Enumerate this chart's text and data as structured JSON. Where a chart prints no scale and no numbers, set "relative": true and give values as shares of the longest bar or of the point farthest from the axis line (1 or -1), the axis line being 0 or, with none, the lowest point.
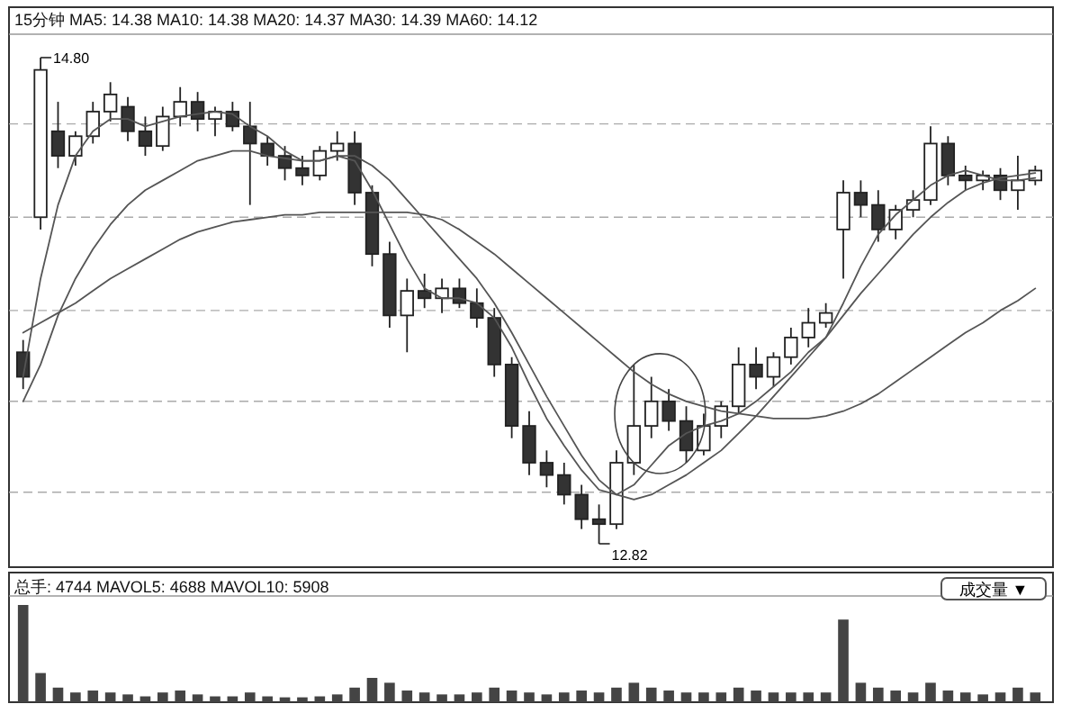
{
  "chart_data": [
    {
      "type": "candlestick",
      "title": "15分钟 MA5: 14.38 MA10: 14.38 MA20: 14.37 MA30: 14.39 MA60: 14.12",
      "categories": [
        null,
        null,
        null,
        null,
        null,
        null,
        null,
        null,
        null,
        null,
        null,
        null,
        null,
        null,
        null,
        null,
        null,
        null,
        null,
        null,
        null,
        null,
        null,
        null,
        null,
        null,
        null,
        null,
        null,
        null,
        null,
        null,
        null,
        null,
        null,
        null,
        null,
        null,
        null,
        null,
        null,
        null,
        null,
        null,
        null,
        null,
        null,
        null,
        null,
        null,
        null,
        null,
        null,
        null,
        null,
        null,
        null,
        null,
        null
      ],
      "ohlc": [
        [
          13.6,
          13.65,
          13.45,
          13.5
        ],
        [
          14.15,
          14.8,
          14.1,
          14.75
        ],
        [
          14.5,
          14.62,
          14.35,
          14.4
        ],
        [
          14.4,
          14.5,
          14.36,
          14.48
        ],
        [
          14.48,
          14.62,
          14.45,
          14.58
        ],
        [
          14.58,
          14.7,
          14.54,
          14.65
        ],
        [
          14.6,
          14.64,
          14.46,
          14.5
        ],
        [
          14.5,
          14.56,
          14.4,
          14.44
        ],
        [
          14.44,
          14.6,
          14.42,
          14.56
        ],
        [
          14.56,
          14.68,
          14.52,
          14.62
        ],
        [
          14.62,
          14.66,
          14.5,
          14.55
        ],
        [
          14.55,
          14.6,
          14.48,
          14.58
        ],
        [
          14.58,
          14.62,
          14.5,
          14.52
        ],
        [
          14.52,
          14.62,
          14.2,
          14.45
        ],
        [
          14.45,
          14.48,
          14.36,
          14.4
        ],
        [
          14.4,
          14.44,
          14.3,
          14.35
        ],
        [
          14.35,
          14.4,
          14.28,
          14.32
        ],
        [
          14.32,
          14.44,
          14.3,
          14.42
        ],
        [
          14.42,
          14.5,
          14.38,
          14.45
        ],
        [
          14.45,
          14.5,
          14.2,
          14.25
        ],
        [
          14.25,
          14.28,
          13.95,
          14.0
        ],
        [
          14.0,
          14.05,
          13.7,
          13.75
        ],
        [
          13.75,
          13.9,
          13.6,
          13.85
        ],
        [
          13.85,
          13.92,
          13.78,
          13.82
        ],
        [
          13.82,
          13.9,
          13.76,
          13.86
        ],
        [
          13.86,
          13.9,
          13.78,
          13.8
        ],
        [
          13.8,
          13.86,
          13.7,
          13.74
        ],
        [
          13.74,
          13.78,
          13.5,
          13.55
        ],
        [
          13.55,
          13.58,
          13.25,
          13.3
        ],
        [
          13.3,
          13.36,
          13.1,
          13.15
        ],
        [
          13.15,
          13.2,
          13.05,
          13.1
        ],
        [
          13.1,
          13.15,
          12.98,
          13.02
        ],
        [
          13.02,
          13.06,
          12.88,
          12.92
        ],
        [
          12.92,
          12.98,
          12.82,
          12.9
        ],
        [
          12.9,
          13.2,
          12.88,
          13.15
        ],
        [
          13.15,
          13.55,
          13.1,
          13.3
        ],
        [
          13.3,
          13.5,
          13.25,
          13.4
        ],
        [
          13.4,
          13.45,
          13.28,
          13.32
        ],
        [
          13.32,
          13.38,
          13.15,
          13.2
        ],
        [
          13.2,
          13.35,
          13.18,
          13.3
        ],
        [
          13.3,
          13.4,
          13.25,
          13.38
        ],
        [
          13.38,
          13.62,
          13.35,
          13.55
        ],
        [
          13.55,
          13.62,
          13.45,
          13.5
        ],
        [
          13.5,
          13.6,
          13.46,
          13.58
        ],
        [
          13.58,
          13.7,
          13.55,
          13.66
        ],
        [
          13.66,
          13.78,
          13.62,
          13.72
        ],
        [
          13.72,
          13.8,
          13.7,
          13.76
        ],
        [
          14.1,
          14.3,
          13.9,
          14.25
        ],
        [
          14.25,
          14.3,
          14.15,
          14.2
        ],
        [
          14.2,
          14.26,
          14.05,
          14.1
        ],
        [
          14.1,
          14.2,
          14.06,
          14.18
        ],
        [
          14.18,
          14.26,
          14.15,
          14.22
        ],
        [
          14.22,
          14.52,
          14.2,
          14.45
        ],
        [
          14.45,
          14.48,
          14.28,
          14.32
        ],
        [
          14.32,
          14.36,
          14.26,
          14.3
        ],
        [
          14.3,
          14.34,
          14.26,
          14.32
        ],
        [
          14.32,
          14.35,
          14.22,
          14.26
        ],
        [
          14.26,
          14.4,
          14.18,
          14.3
        ],
        [
          14.3,
          14.36,
          14.28,
          14.34
        ]
      ],
      "series": [
        {
          "type": "line",
          "color": "#555555",
          "values": [
            13.5,
            13.9,
            14.2,
            14.4,
            14.5,
            14.55,
            14.55,
            14.52,
            14.54,
            14.56,
            14.57,
            14.58,
            14.57,
            14.52,
            14.48,
            14.42,
            14.38,
            14.38,
            14.4,
            14.38,
            14.26,
            14.12,
            13.98,
            13.86,
            13.82,
            13.82,
            13.8,
            13.74,
            13.62,
            13.47,
            13.33,
            13.22,
            13.12,
            13.04,
            13.02,
            13.06,
            13.14,
            13.22,
            13.27,
            13.3,
            13.32,
            13.35,
            13.4,
            13.46,
            13.52,
            13.6,
            13.66,
            13.8,
            13.95,
            14.08,
            14.16,
            14.22,
            14.28,
            14.32,
            14.34,
            14.32,
            14.3,
            14.3,
            14.31
          ]
        },
        {
          "type": "line",
          "color": "#555555",
          "values": [
            13.4,
            13.55,
            13.75,
            13.9,
            14.02,
            14.12,
            14.2,
            14.26,
            14.3,
            14.34,
            14.38,
            14.4,
            14.42,
            14.42,
            14.4,
            14.39,
            14.38,
            14.38,
            14.4,
            14.4,
            14.36,
            14.3,
            14.22,
            14.14,
            14.06,
            13.98,
            13.9,
            13.8,
            13.68,
            13.55,
            13.42,
            13.3,
            13.18,
            13.08,
            13.02,
            13.0,
            13.02,
            13.06,
            13.1,
            13.15,
            13.2,
            13.27,
            13.34,
            13.42,
            13.5,
            13.58,
            13.66,
            13.75,
            13.84,
            13.92,
            14.0,
            14.08,
            14.15,
            14.21,
            14.26,
            14.29,
            14.31,
            14.32,
            14.33
          ]
        },
        {
          "type": "line",
          "color": "#555555",
          "values": [
            13.68,
            13.72,
            13.76,
            13.8,
            13.85,
            13.9,
            13.94,
            13.98,
            14.02,
            14.06,
            14.09,
            14.11,
            14.13,
            14.14,
            14.15,
            14.16,
            14.16,
            14.17,
            14.17,
            14.17,
            14.17,
            14.17,
            14.17,
            14.16,
            14.14,
            14.1,
            14.05,
            14.0,
            13.94,
            13.88,
            13.82,
            13.76,
            13.7,
            13.64,
            13.58,
            13.52,
            13.47,
            13.43,
            13.4,
            13.38,
            13.36,
            13.35,
            13.34,
            13.33,
            13.33,
            13.33,
            13.34,
            13.36,
            13.39,
            13.43,
            13.48,
            13.53,
            13.58,
            13.63,
            13.68,
            13.72,
            13.77,
            13.81,
            13.86
          ]
        }
      ],
      "yticks": [
        {
          "value": 14.53,
          "label": null
        },
        {
          "value": 14.15,
          "label": null
        },
        {
          "value": 13.77,
          "label": null
        },
        {
          "value": 13.4,
          "label": null
        },
        {
          "value": 13.03,
          "label": null
        }
      ],
      "grid": "y",
      "annotations": [
        "14.80",
        "12.82"
      ]
    },
    {
      "type": "bar",
      "relative": true,
      "title": "总手: 4744 MAVOL5: 4688 MAVOL10: 5908",
      "annotations": [
        "成交量 ▼"
      ],
      "color": "#444444",
      "categories": [
        null,
        null,
        null,
        null,
        null,
        null,
        null,
        null,
        null,
        null,
        null,
        null,
        null,
        null,
        null,
        null,
        null,
        null,
        null,
        null,
        null,
        null,
        null,
        null,
        null,
        null,
        null,
        null,
        null,
        null,
        null,
        null,
        null,
        null,
        null,
        null,
        null,
        null,
        null,
        null,
        null,
        null,
        null,
        null,
        null,
        null,
        null,
        null,
        null,
        null,
        null,
        null,
        null,
        null,
        null,
        null,
        null,
        null,
        null
      ],
      "values": [
        1.0,
        0.3,
        0.15,
        0.1,
        0.12,
        0.1,
        0.08,
        0.06,
        0.1,
        0.12,
        0.08,
        0.06,
        0.06,
        0.1,
        0.06,
        0.05,
        0.05,
        0.06,
        0.08,
        0.15,
        0.25,
        0.2,
        0.12,
        0.1,
        0.08,
        0.08,
        0.1,
        0.15,
        0.12,
        0.1,
        0.08,
        0.1,
        0.12,
        0.1,
        0.15,
        0.2,
        0.15,
        0.12,
        0.1,
        0.1,
        0.1,
        0.15,
        0.12,
        0.1,
        0.1,
        0.1,
        0.1,
        0.85,
        0.2,
        0.15,
        0.12,
        0.1,
        0.2,
        0.12,
        0.1,
        0.08,
        0.1,
        0.15,
        0.1
      ]
    }
  ]
}
